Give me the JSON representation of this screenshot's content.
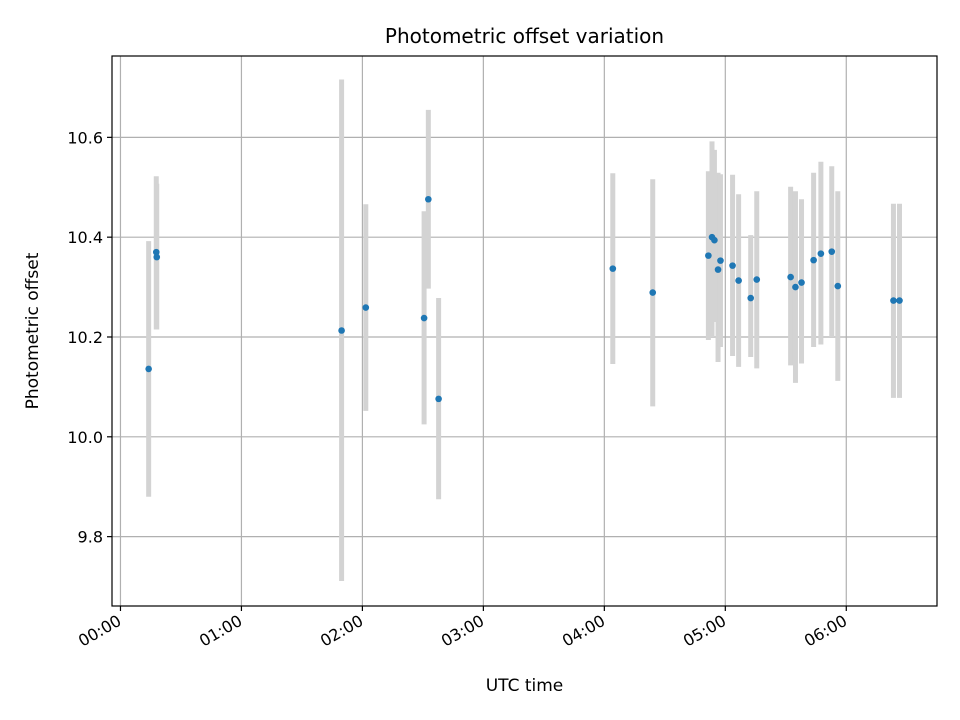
{
  "chart_data": {
    "type": "scatter",
    "title": "Photometric offset variation",
    "xlabel": "UTC time",
    "ylabel": "Photometric offset",
    "xlim_hours": [
      -0.07,
      6.75
    ],
    "ylim": [
      9.661,
      10.763
    ],
    "x_ticks": [
      {
        "value": 0,
        "label": "00:00"
      },
      {
        "value": 1,
        "label": "01:00"
      },
      {
        "value": 2,
        "label": "02:00"
      },
      {
        "value": 3,
        "label": "03:00"
      },
      {
        "value": 4,
        "label": "04:00"
      },
      {
        "value": 5,
        "label": "05:00"
      },
      {
        "value": 6,
        "label": "06:00"
      }
    ],
    "y_ticks": [
      {
        "value": 9.8,
        "label": "9.8"
      },
      {
        "value": 10.0,
        "label": "10.0"
      },
      {
        "value": 10.2,
        "label": "10.2"
      },
      {
        "value": 10.4,
        "label": "10.4"
      },
      {
        "value": 10.6,
        "label": "10.6"
      }
    ],
    "grid": true,
    "colors": {
      "marker": "#1f77b4",
      "errorbar": "#d3d3d3",
      "grid": "#b0b0b0",
      "axes": "#000000"
    },
    "series": [
      {
        "points": [
          {
            "x": 0.233,
            "y": 10.136,
            "lo": 9.88,
            "hi": 10.392
          },
          {
            "x": 0.296,
            "y": 10.37,
            "lo": 10.215,
            "hi": 10.522
          },
          {
            "x": 0.3,
            "y": 10.36,
            "lo": 10.215,
            "hi": 10.507
          },
          {
            "x": 1.828,
            "y": 10.213,
            "lo": 9.711,
            "hi": 10.716
          },
          {
            "x": 2.028,
            "y": 10.259,
            "lo": 10.052,
            "hi": 10.466
          },
          {
            "x": 2.51,
            "y": 10.238,
            "lo": 10.025,
            "hi": 10.452
          },
          {
            "x": 2.545,
            "y": 10.476,
            "lo": 10.297,
            "hi": 10.655
          },
          {
            "x": 2.63,
            "y": 10.076,
            "lo": 9.875,
            "hi": 10.278
          },
          {
            "x": 4.07,
            "y": 10.337,
            "lo": 10.146,
            "hi": 10.528
          },
          {
            "x": 4.4,
            "y": 10.289,
            "lo": 10.061,
            "hi": 10.516
          },
          {
            "x": 4.86,
            "y": 10.363,
            "lo": 10.194,
            "hi": 10.532
          },
          {
            "x": 4.89,
            "y": 10.4,
            "lo": 10.2,
            "hi": 10.592
          },
          {
            "x": 4.91,
            "y": 10.394,
            "lo": 10.23,
            "hi": 10.575
          },
          {
            "x": 4.94,
            "y": 10.335,
            "lo": 10.15,
            "hi": 10.529
          },
          {
            "x": 4.96,
            "y": 10.353,
            "lo": 10.18,
            "hi": 10.526
          },
          {
            "x": 5.06,
            "y": 10.343,
            "lo": 10.162,
            "hi": 10.525
          },
          {
            "x": 5.11,
            "y": 10.313,
            "lo": 10.14,
            "hi": 10.486
          },
          {
            "x": 5.21,
            "y": 10.278,
            "lo": 10.16,
            "hi": 10.404
          },
          {
            "x": 5.26,
            "y": 10.315,
            "lo": 10.137,
            "hi": 10.492
          },
          {
            "x": 5.54,
            "y": 10.32,
            "lo": 10.143,
            "hi": 10.501
          },
          {
            "x": 5.58,
            "y": 10.3,
            "lo": 10.108,
            "hi": 10.492
          },
          {
            "x": 5.63,
            "y": 10.309,
            "lo": 10.147,
            "hi": 10.476
          },
          {
            "x": 5.73,
            "y": 10.354,
            "lo": 10.18,
            "hi": 10.529
          },
          {
            "x": 5.79,
            "y": 10.367,
            "lo": 10.185,
            "hi": 10.551
          },
          {
            "x": 5.88,
            "y": 10.371,
            "lo": 10.2,
            "hi": 10.542
          },
          {
            "x": 5.93,
            "y": 10.302,
            "lo": 10.112,
            "hi": 10.492
          },
          {
            "x": 6.39,
            "y": 10.273,
            "lo": 10.078,
            "hi": 10.467
          },
          {
            "x": 6.44,
            "y": 10.273,
            "lo": 10.078,
            "hi": 10.467
          }
        ]
      }
    ]
  }
}
